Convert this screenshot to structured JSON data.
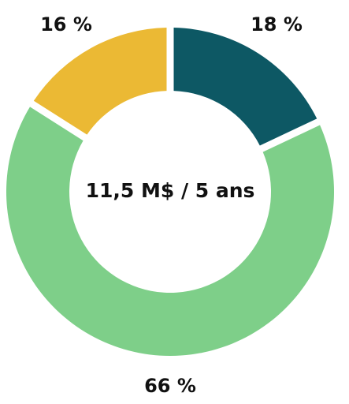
{
  "chart_data": {
    "type": "pie",
    "center_label": "11,5 M$ / 5 ans",
    "slices": [
      {
        "label": "18 %",
        "value": 18,
        "color": "#0d5864"
      },
      {
        "label": "66 %",
        "value": 66,
        "color": "#7ecf89"
      },
      {
        "label": "16 %",
        "value": 16,
        "color": "#ebb934"
      }
    ]
  }
}
